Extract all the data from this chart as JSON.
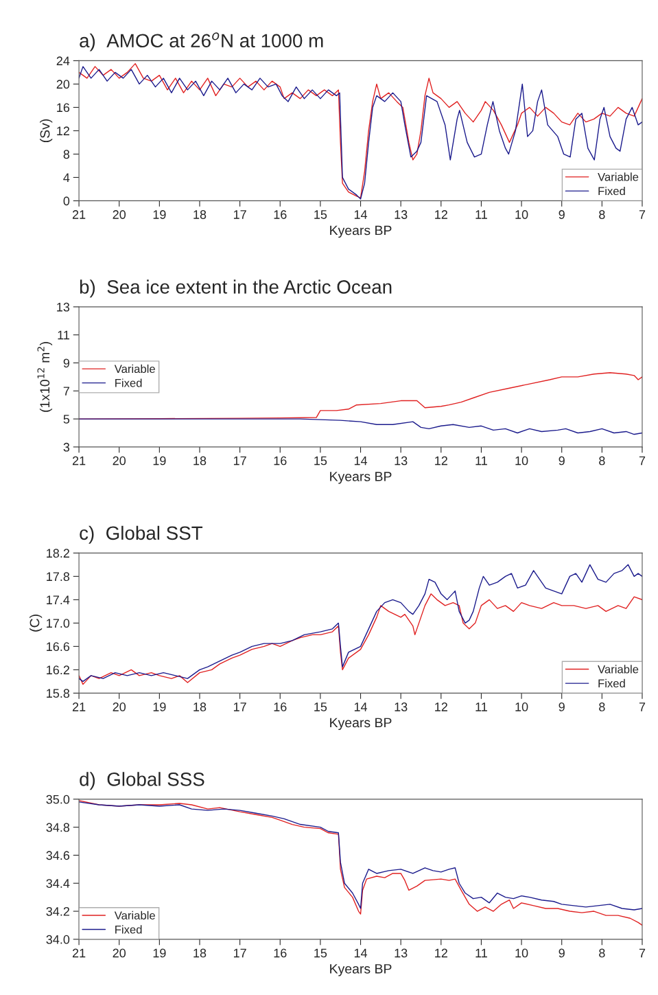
{
  "chart_data": [
    {
      "type": "line",
      "title": "a)  AMOC at 26$^{o}$N at 1000 m",
      "xlabel": "Kyears BP",
      "ylabel": "(Sv)",
      "xlim": [
        21,
        7
      ],
      "xticks": [
        21,
        20,
        19,
        18,
        17,
        16,
        15,
        14,
        13,
        12,
        11,
        10,
        9,
        8,
        7
      ],
      "ylim": [
        0,
        24
      ],
      "yticks": [
        0,
        4,
        8,
        12,
        16,
        20,
        24
      ],
      "grid": false,
      "legend": "bottom right",
      "series": [
        {
          "name": "Variable",
          "color": "#e02020",
          "x": [
            21.0,
            20.8,
            20.6,
            20.4,
            20.2,
            20.0,
            19.8,
            19.6,
            19.4,
            19.2,
            19.0,
            18.8,
            18.6,
            18.4,
            18.2,
            18.0,
            17.8,
            17.6,
            17.4,
            17.2,
            17.0,
            16.8,
            16.6,
            16.4,
            16.2,
            16.0,
            15.9,
            15.7,
            15.5,
            15.3,
            15.1,
            14.9,
            14.7,
            14.55,
            14.5,
            14.45,
            14.3,
            14.1,
            14.0,
            13.9,
            13.8,
            13.7,
            13.6,
            13.5,
            13.3,
            13.1,
            12.95,
            12.8,
            12.7,
            12.6,
            12.5,
            12.4,
            12.3,
            12.2,
            12.0,
            11.8,
            11.6,
            11.4,
            11.2,
            11.0,
            10.9,
            10.7,
            10.5,
            10.3,
            10.1,
            10.0,
            9.8,
            9.6,
            9.4,
            9.2,
            9.0,
            8.8,
            8.6,
            8.4,
            8.2,
            8.0,
            7.8,
            7.6,
            7.4,
            7.2,
            7.1,
            7.0
          ],
          "values": [
            22,
            21,
            23,
            21.5,
            22.5,
            21,
            22,
            23.5,
            21,
            20.5,
            21.5,
            19,
            21,
            18.5,
            20.5,
            19,
            21,
            18,
            20,
            19.5,
            21,
            19.5,
            20.5,
            19,
            20.5,
            19.5,
            17.5,
            18.5,
            17.5,
            19,
            18,
            19,
            18,
            19,
            10,
            3,
            1.5,
            0.8,
            0.5,
            5,
            12,
            17,
            20,
            17.5,
            18.5,
            17,
            16,
            10,
            7,
            8,
            12,
            18,
            21,
            18.5,
            17.5,
            16,
            17,
            15,
            13.5,
            15.5,
            17,
            15.5,
            13,
            10,
            13,
            15,
            16,
            14.5,
            16,
            15,
            13.5,
            13,
            15,
            13.5,
            14,
            15,
            14.5,
            16,
            15,
            14.5,
            16,
            17.5
          ]
        },
        {
          "name": "Fixed",
          "color": "#1a1a8c",
          "x": [
            21.0,
            20.9,
            20.7,
            20.5,
            20.3,
            20.1,
            19.9,
            19.7,
            19.5,
            19.3,
            19.1,
            18.9,
            18.7,
            18.5,
            18.3,
            18.1,
            17.9,
            17.7,
            17.5,
            17.3,
            17.1,
            16.9,
            16.7,
            16.5,
            16.3,
            16.1,
            15.95,
            15.8,
            15.6,
            15.4,
            15.2,
            15.0,
            14.8,
            14.6,
            14.52,
            14.45,
            14.3,
            14.1,
            14.0,
            13.9,
            13.8,
            13.7,
            13.6,
            13.4,
            13.2,
            13.0,
            12.9,
            12.75,
            12.6,
            12.5,
            12.36,
            12.1,
            11.9,
            11.77,
            11.6,
            11.54,
            11.35,
            11.17,
            11.0,
            10.85,
            10.71,
            10.55,
            10.4,
            10.32,
            10.15,
            9.98,
            9.85,
            9.72,
            9.6,
            9.5,
            9.35,
            9.1,
            8.95,
            8.79,
            8.65,
            8.5,
            8.35,
            8.19,
            8.05,
            7.95,
            7.8,
            7.65,
            7.55,
            7.4,
            7.25,
            7.1,
            7.0
          ],
          "values": [
            21,
            23,
            21,
            22.5,
            20.5,
            22,
            21,
            22.5,
            20,
            21.5,
            19.5,
            21,
            18.5,
            21,
            19,
            20.5,
            18,
            20.5,
            19,
            21,
            18.5,
            20,
            19,
            21,
            19.5,
            20,
            18,
            17,
            19.5,
            17.5,
            19,
            17.5,
            19,
            18,
            18.5,
            4,
            2,
            1,
            0.3,
            3,
            10,
            16,
            18,
            17,
            18.5,
            17,
            13,
            7.5,
            8.5,
            10,
            18,
            17,
            13,
            7,
            14,
            15.5,
            10,
            7.5,
            8,
            13,
            17,
            12,
            9,
            8,
            12,
            20,
            11,
            12,
            17,
            19,
            13,
            11,
            8,
            7.5,
            14,
            15,
            9,
            7,
            14,
            16,
            11,
            9,
            8.5,
            14,
            16,
            13,
            13.5
          ]
        }
      ]
    },
    {
      "type": "line",
      "title": "b)  Sea ice extent in the Arctic Ocean",
      "xlabel": "Kyears BP",
      "ylabel": "(1x10$^{12}$ m$^{2}$)",
      "xlim": [
        21,
        7
      ],
      "xticks": [
        21,
        20,
        19,
        18,
        17,
        16,
        15,
        14,
        13,
        12,
        11,
        10,
        9,
        8,
        7
      ],
      "ylim": [
        3,
        13
      ],
      "yticks": [
        3,
        5,
        7,
        9,
        11,
        13
      ],
      "grid": false,
      "legend": "left",
      "series": [
        {
          "name": "Variable",
          "color": "#e02020",
          "x": [
            21.0,
            19.0,
            17.0,
            16.0,
            15.1,
            15.0,
            14.6,
            14.3,
            14.1,
            13.5,
            13.0,
            12.6,
            12.4,
            12.0,
            11.8,
            11.5,
            11.2,
            10.8,
            10.3,
            9.8,
            9.3,
            9.0,
            8.6,
            8.2,
            7.8,
            7.4,
            7.2,
            7.1,
            7.0
          ],
          "values": [
            5.0,
            5.02,
            5.05,
            5.07,
            5.1,
            5.6,
            5.6,
            5.7,
            6.0,
            6.1,
            6.3,
            6.3,
            5.8,
            5.9,
            6.0,
            6.2,
            6.5,
            6.9,
            7.2,
            7.5,
            7.8,
            8.0,
            8.0,
            8.2,
            8.3,
            8.2,
            8.1,
            7.8,
            8.0
          ]
        },
        {
          "name": "Fixed",
          "color": "#1a1a8c",
          "x": [
            21.0,
            18.0,
            15.5,
            15.0,
            14.5,
            14.0,
            13.6,
            13.2,
            12.7,
            12.5,
            12.3,
            12.0,
            11.7,
            11.3,
            11.0,
            10.7,
            10.4,
            10.1,
            9.8,
            9.5,
            9.1,
            8.9,
            8.6,
            8.3,
            8.0,
            7.7,
            7.4,
            7.2,
            7.0
          ],
          "values": [
            5.0,
            5.0,
            5.0,
            4.95,
            4.9,
            4.8,
            4.6,
            4.6,
            4.8,
            4.4,
            4.3,
            4.5,
            4.6,
            4.4,
            4.5,
            4.2,
            4.3,
            4.0,
            4.3,
            4.1,
            4.2,
            4.3,
            4.0,
            4.1,
            4.3,
            4.0,
            4.1,
            3.9,
            4.0
          ]
        }
      ]
    },
    {
      "type": "line",
      "title": "c)  Global SST",
      "xlabel": "Kyears BP",
      "ylabel": "(C)",
      "xlim": [
        21,
        7
      ],
      "xticks": [
        21,
        20,
        19,
        18,
        17,
        16,
        15,
        14,
        13,
        12,
        11,
        10,
        9,
        8,
        7
      ],
      "ylim": [
        15.8,
        18.2
      ],
      "yticks": [
        15.8,
        16.2,
        16.6,
        {
          "value": 17.0,
          "label": "17.0"
        },
        17.4,
        17.8,
        18.2
      ],
      "grid": false,
      "legend": "bottom right",
      "series": [
        {
          "name": "Variable",
          "color": "#e02020",
          "x": [
            21.0,
            20.9,
            20.7,
            20.5,
            20.2,
            20.0,
            19.7,
            19.5,
            19.2,
            19.0,
            18.7,
            18.5,
            18.3,
            18.0,
            17.7,
            17.5,
            17.2,
            17.0,
            16.7,
            16.4,
            16.2,
            16.0,
            15.7,
            15.5,
            15.2,
            15.0,
            14.7,
            14.55,
            14.5,
            14.45,
            14.3,
            14.0,
            13.8,
            13.6,
            13.5,
            13.3,
            13.0,
            12.9,
            12.7,
            12.65,
            12.5,
            12.4,
            12.25,
            12.1,
            11.9,
            11.7,
            11.55,
            11.45,
            11.3,
            11.15,
            11.0,
            10.8,
            10.6,
            10.4,
            10.2,
            10.0,
            9.8,
            9.5,
            9.2,
            9.0,
            8.7,
            8.4,
            8.1,
            7.9,
            7.6,
            7.4,
            7.2,
            7.0
          ],
          "values": [
            16.1,
            15.95,
            16.1,
            16.05,
            16.15,
            16.1,
            16.2,
            16.1,
            16.15,
            16.1,
            16.05,
            16.1,
            15.98,
            16.15,
            16.2,
            16.3,
            16.4,
            16.45,
            16.55,
            16.6,
            16.65,
            16.6,
            16.7,
            16.75,
            16.8,
            16.8,
            16.85,
            16.95,
            16.5,
            16.2,
            16.4,
            16.55,
            16.8,
            17.1,
            17.3,
            17.2,
            17.1,
            17.15,
            16.95,
            16.8,
            17.1,
            17.3,
            17.5,
            17.4,
            17.3,
            17.35,
            17.3,
            17.0,
            16.9,
            17.0,
            17.3,
            17.4,
            17.25,
            17.3,
            17.2,
            17.35,
            17.3,
            17.25,
            17.35,
            17.3,
            17.3,
            17.25,
            17.3,
            17.2,
            17.3,
            17.25,
            17.45,
            17.4
          ]
        },
        {
          "name": "Fixed",
          "color": "#1a1a8c",
          "x": [
            21.0,
            20.9,
            20.7,
            20.4,
            20.1,
            19.8,
            19.5,
            19.2,
            18.9,
            18.6,
            18.3,
            18.0,
            17.8,
            17.5,
            17.2,
            17.0,
            16.7,
            16.4,
            16.0,
            15.7,
            15.4,
            15.0,
            14.7,
            14.55,
            14.5,
            14.45,
            14.3,
            14.0,
            13.8,
            13.6,
            13.4,
            13.2,
            13.0,
            12.8,
            12.7,
            12.55,
            12.4,
            12.3,
            12.15,
            12.0,
            11.85,
            11.65,
            11.55,
            11.4,
            11.3,
            11.2,
            11.05,
            10.95,
            10.8,
            10.6,
            10.4,
            10.25,
            10.1,
            9.9,
            9.7,
            9.55,
            9.4,
            9.2,
            9.0,
            8.8,
            8.65,
            8.5,
            8.3,
            8.1,
            7.9,
            7.7,
            7.5,
            7.35,
            7.2,
            7.1,
            7.0
          ],
          "values": [
            16.05,
            16.0,
            16.1,
            16.05,
            16.15,
            16.1,
            16.15,
            16.1,
            16.15,
            16.1,
            16.05,
            16.2,
            16.25,
            16.35,
            16.45,
            16.5,
            16.6,
            16.65,
            16.65,
            16.7,
            16.8,
            16.85,
            16.9,
            17.0,
            16.6,
            16.25,
            16.5,
            16.6,
            16.9,
            17.2,
            17.35,
            17.4,
            17.35,
            17.2,
            17.15,
            17.3,
            17.5,
            17.75,
            17.7,
            17.5,
            17.4,
            17.55,
            17.2,
            17.0,
            17.05,
            17.2,
            17.6,
            17.8,
            17.65,
            17.7,
            17.8,
            17.85,
            17.6,
            17.65,
            17.9,
            17.75,
            17.6,
            17.55,
            17.5,
            17.8,
            17.85,
            17.7,
            18.0,
            17.75,
            17.7,
            17.85,
            17.9,
            18.0,
            17.8,
            17.85,
            17.8
          ]
        }
      ]
    },
    {
      "type": "line",
      "title": "d)  Global SSS",
      "xlabel": "Kyears BP",
      "xlim": [
        21,
        7
      ],
      "xticks": [
        21,
        20,
        19,
        18,
        17,
        16,
        15,
        14,
        13,
        12,
        11,
        10,
        9,
        8,
        7
      ],
      "ylim": [
        34.0,
        35.0
      ],
      "yticks": [
        {
          "value": 34.0,
          "label": "34.0"
        },
        34.2,
        34.4,
        34.6,
        34.8,
        {
          "value": 35.0,
          "label": "35.0"
        }
      ],
      "grid": false,
      "legend": "bottom left",
      "series": [
        {
          "name": "Variable",
          "color": "#e02020",
          "x": [
            21.0,
            20.5,
            20.0,
            19.5,
            19.0,
            18.5,
            18.2,
            17.8,
            17.5,
            17.0,
            16.6,
            16.2,
            16.0,
            15.7,
            15.4,
            15.0,
            14.8,
            14.55,
            14.5,
            14.4,
            14.2,
            14.05,
            14.0,
            13.95,
            13.85,
            13.6,
            13.4,
            13.2,
            13.0,
            12.9,
            12.8,
            12.6,
            12.4,
            12.0,
            11.8,
            11.65,
            11.5,
            11.3,
            11.1,
            10.9,
            10.7,
            10.5,
            10.3,
            10.2,
            10.0,
            9.7,
            9.4,
            9.1,
            8.8,
            8.5,
            8.2,
            7.9,
            7.6,
            7.3,
            7.1,
            7.0
          ],
          "values": [
            34.99,
            34.96,
            34.95,
            34.96,
            34.96,
            34.97,
            34.96,
            34.93,
            34.94,
            34.91,
            34.89,
            34.87,
            34.85,
            34.82,
            34.8,
            34.79,
            34.76,
            34.75,
            34.5,
            34.37,
            34.3,
            34.2,
            34.18,
            34.35,
            34.43,
            34.45,
            34.44,
            34.47,
            34.47,
            34.42,
            34.35,
            34.38,
            34.42,
            34.43,
            34.42,
            34.43,
            34.35,
            34.25,
            34.2,
            34.23,
            34.2,
            34.25,
            34.28,
            34.22,
            34.26,
            34.24,
            34.22,
            34.22,
            34.2,
            34.19,
            34.2,
            34.17,
            34.17,
            34.15,
            34.12,
            34.1
          ]
        },
        {
          "name": "Fixed",
          "color": "#1a1a8c",
          "x": [
            21.0,
            20.5,
            20.0,
            19.5,
            19.0,
            18.5,
            18.2,
            17.8,
            17.4,
            17.0,
            16.6,
            16.2,
            15.9,
            15.5,
            15.0,
            14.8,
            14.55,
            14.5,
            14.4,
            14.2,
            14.05,
            14.0,
            13.95,
            13.8,
            13.6,
            13.3,
            13.0,
            12.7,
            12.4,
            12.2,
            12.0,
            11.8,
            11.65,
            11.55,
            11.4,
            11.2,
            11.0,
            10.8,
            10.6,
            10.4,
            10.2,
            10.0,
            9.8,
            9.5,
            9.2,
            9.0,
            8.7,
            8.4,
            8.1,
            7.8,
            7.5,
            7.2,
            7.0
          ],
          "values": [
            34.98,
            34.96,
            34.95,
            34.96,
            34.95,
            34.96,
            34.93,
            34.92,
            34.93,
            34.92,
            34.9,
            34.88,
            34.86,
            34.82,
            34.8,
            34.77,
            34.76,
            34.55,
            34.4,
            34.33,
            34.25,
            34.22,
            34.4,
            34.5,
            34.47,
            34.49,
            34.5,
            34.47,
            34.51,
            34.49,
            34.48,
            34.5,
            34.51,
            34.4,
            34.33,
            34.29,
            34.3,
            34.26,
            34.33,
            34.3,
            34.29,
            34.31,
            34.3,
            34.28,
            34.27,
            34.25,
            34.24,
            34.23,
            34.24,
            34.25,
            34.22,
            34.21,
            34.22
          ]
        }
      ]
    }
  ]
}
